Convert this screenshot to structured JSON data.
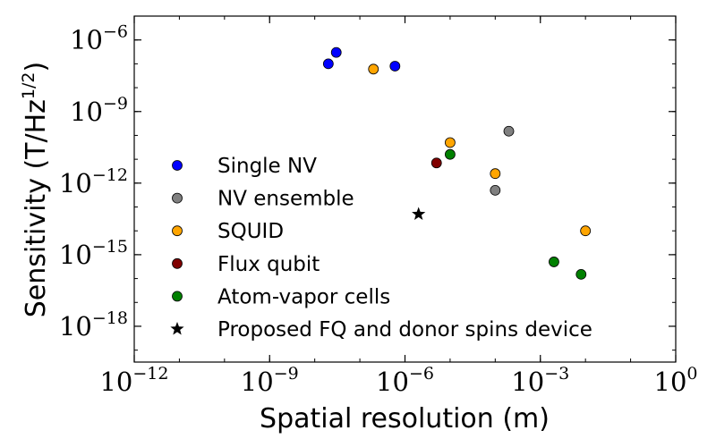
{
  "chart_data": {
    "type": "scatter",
    "title": "",
    "xlabel": "Spatial resolution (m)",
    "ylabel_main": "Sensitivity (T/Hz",
    "ylabel_sup": "1/2",
    "ylabel_close": ")",
    "xscale": "log",
    "yscale": "log",
    "xlim_exp": [
      -12,
      0
    ],
    "ylim_exp": [
      -19.5,
      -5
    ],
    "x_ticks": [
      {
        "exp": -12,
        "base": "10",
        "sup": "−12"
      },
      {
        "exp": -9,
        "base": "10",
        "sup": "−9"
      },
      {
        "exp": -6,
        "base": "10",
        "sup": "−6"
      },
      {
        "exp": -3,
        "base": "10",
        "sup": "−3"
      },
      {
        "exp": 0,
        "base": "10",
        "sup": "0"
      }
    ],
    "y_ticks": [
      {
        "exp": -6,
        "base": "10",
        "sup": "−6"
      },
      {
        "exp": -9,
        "base": "10",
        "sup": "−9"
      },
      {
        "exp": -12,
        "base": "10",
        "sup": "−12"
      },
      {
        "exp": -15,
        "base": "10",
        "sup": "−15"
      },
      {
        "exp": -18,
        "base": "10",
        "sup": "−18"
      }
    ],
    "legend_position": "center-left",
    "series": [
      {
        "name": "Single NV",
        "color": "#0000ff",
        "marker": "circle",
        "points": [
          {
            "x": 2e-08,
            "y": 1e-07
          },
          {
            "x": 3e-08,
            "y": 3e-07
          },
          {
            "x": 6e-07,
            "y": 8e-08
          }
        ]
      },
      {
        "name": "NV ensemble",
        "color": "#808080",
        "marker": "circle",
        "points": [
          {
            "x": 0.0002,
            "y": 1.5e-10
          },
          {
            "x": 0.0001,
            "y": 5e-13
          }
        ]
      },
      {
        "name": "SQUID",
        "color": "#ffa500",
        "marker": "circle",
        "points": [
          {
            "x": 2e-07,
            "y": 6e-08
          },
          {
            "x": 1e-05,
            "y": 5e-11
          },
          {
            "x": 0.0001,
            "y": 2.5e-12
          },
          {
            "x": 0.01,
            "y": 1e-14
          }
        ]
      },
      {
        "name": "Flux qubit",
        "color": "#800000",
        "marker": "circle",
        "points": [
          {
            "x": 5e-06,
            "y": 7e-12
          }
        ]
      },
      {
        "name": "Atom-vapor cells",
        "color": "#008000",
        "marker": "circle",
        "points": [
          {
            "x": 1e-05,
            "y": 1.6e-11
          },
          {
            "x": 0.002,
            "y": 5e-16
          },
          {
            "x": 0.008,
            "y": 1.5e-16
          }
        ]
      },
      {
        "name": "Proposed FQ and donor spins device",
        "color": "#000000",
        "marker": "star",
        "points": [
          {
            "x": 2e-06,
            "y": 5e-14
          }
        ]
      }
    ]
  }
}
